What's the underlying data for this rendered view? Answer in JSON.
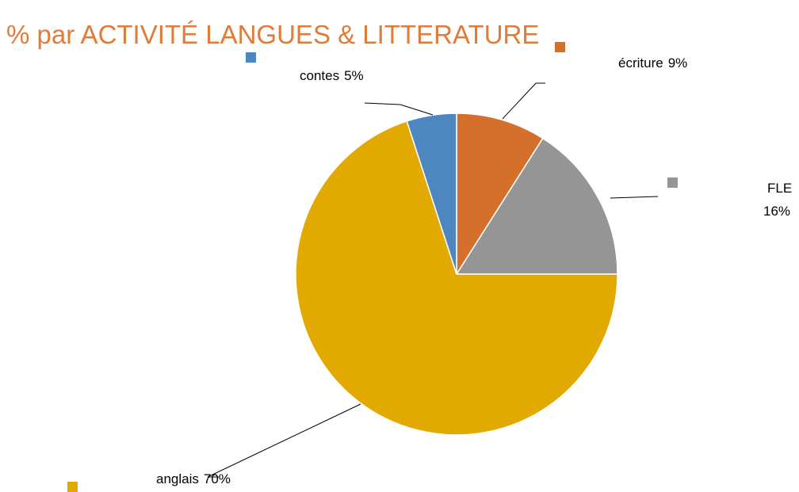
{
  "chart_data": {
    "type": "pie",
    "title": "% par ACTIVITÉ LANGUES & LITTERATURE",
    "categories": [
      "écriture",
      "FLE",
      "anglais",
      "contes"
    ],
    "values": [
      9,
      16,
      70,
      5
    ],
    "value_labels": [
      "9%",
      "16%",
      "70%",
      "5%"
    ],
    "colors": [
      "#d4702c",
      "#959595",
      "#e2aa00",
      "#4e86c0"
    ]
  }
}
